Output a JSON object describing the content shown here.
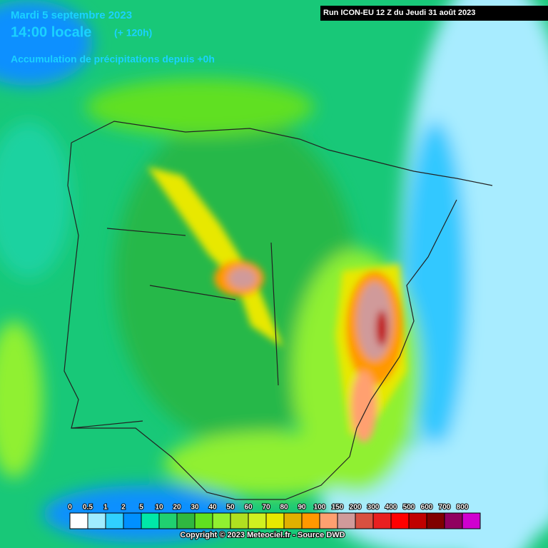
{
  "header": {
    "date": "Mardi 5 septembre 2023",
    "time": "14:00 locale",
    "lead": "(+ 120h)",
    "product": "Accumulation de précipitations depuis +0h"
  },
  "run": "Run ICON-EU 12 Z du Jeudi 31 août 2023",
  "legend": {
    "labels": [
      "0",
      "0.5",
      "1",
      "2",
      "5",
      "10",
      "20",
      "30",
      "40",
      "50",
      "60",
      "70",
      "80",
      "90",
      "100",
      "150",
      "200",
      "300",
      "400",
      "500",
      "600",
      "700",
      "800"
    ],
    "colors": [
      "#ffffff",
      "#a0ecff",
      "#30d0ff",
      "#0090ff",
      "#00e8a8",
      "#20d070",
      "#30b840",
      "#60e020",
      "#90f030",
      "#b0e020",
      "#d0f020",
      "#e8e800",
      "#e0b000",
      "#ff9800",
      "#ffa070",
      "#d09a9a",
      "#d85040",
      "#e82020",
      "#ff0000",
      "#c00000",
      "#800000",
      "#900060",
      "#d000d0"
    ]
  },
  "copyright": "Copyright © 2023 Meteociel.fr - Source DWD"
}
